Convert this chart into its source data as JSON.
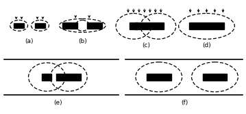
{
  "bg_color": "#ffffff",
  "label_a": "(a)",
  "label_b": "(b)",
  "label_c": "(c)",
  "label_d": "(d)",
  "label_e": "(e)",
  "label_f": "(f)"
}
